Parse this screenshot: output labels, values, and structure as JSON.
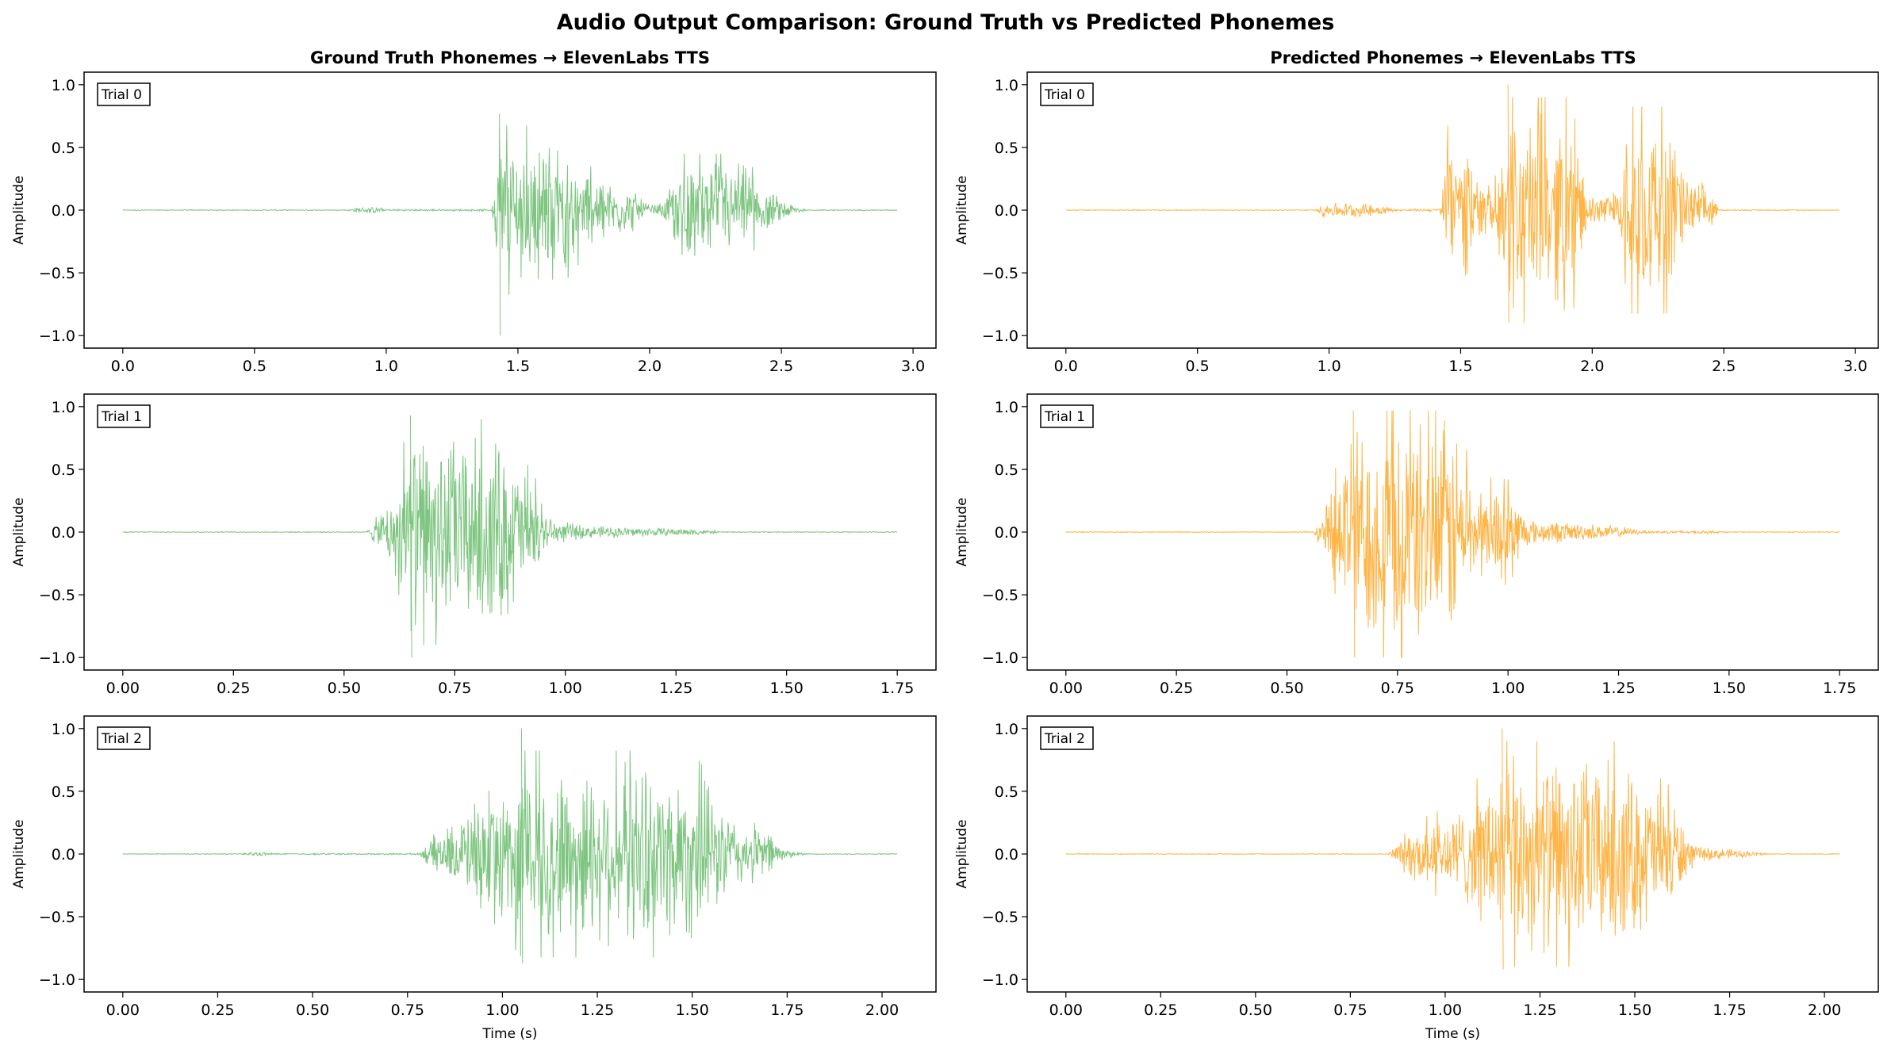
{
  "title": "Audio Output Comparison: Ground Truth vs Predicted Phonemes",
  "colors": {
    "ground_truth_title": "#4caf50",
    "ground_truth_line": "#66bb6a",
    "predicted_title": "#ff9800",
    "predicted_line": "#ffa726"
  },
  "columns": [
    {
      "title": "Ground Truth Phonemes → ElevenLabs TTS"
    },
    {
      "title": "Predicted Phonemes → ElevenLabs TTS"
    }
  ],
  "chart_data": [
    {
      "type": "line",
      "column": 0,
      "trial_label": "Trial 0",
      "ylabel": "Amplitude",
      "xlabel": "",
      "xlim": [
        -0.147,
        3.087
      ],
      "ylim": [
        -1.1,
        1.1
      ],
      "xticks": [
        0,
        0.5,
        1.0,
        1.5,
        2.0,
        2.5,
        3.0
      ],
      "xtick_labels": [
        "0.0",
        "0.5",
        "1.0",
        "1.5",
        "2.0",
        "2.5",
        "3.0"
      ],
      "yticks": [
        -1,
        -0.5,
        0,
        0.5,
        1
      ],
      "ytick_labels": [
        "−1.0",
        "−0.5",
        "0.0",
        "0.5",
        "1.0"
      ],
      "duration": 2.94,
      "max": 0.77,
      "min": -1.0,
      "envelope": [
        [
          0,
          0.003
        ],
        [
          0.85,
          0.003
        ],
        [
          0.9,
          0.02
        ],
        [
          0.96,
          0.02
        ],
        [
          1.0,
          0.006
        ],
        [
          1.4,
          0.006
        ],
        [
          1.43,
          0.45
        ],
        [
          1.6,
          0.45
        ],
        [
          1.7,
          0.35
        ],
        [
          1.75,
          0.25
        ],
        [
          1.95,
          0.12
        ],
        [
          2.0,
          0.03
        ],
        [
          2.05,
          0.05
        ],
        [
          2.12,
          0.3
        ],
        [
          2.35,
          0.3
        ],
        [
          2.45,
          0.12
        ],
        [
          2.55,
          0.03
        ],
        [
          2.6,
          0.004
        ],
        [
          2.94,
          0.003
        ]
      ]
    },
    {
      "type": "line",
      "column": 1,
      "trial_label": "Trial 0",
      "ylabel": "Amplitude",
      "xlabel": "",
      "xlim": [
        -0.147,
        3.087
      ],
      "ylim": [
        -1.1,
        1.1
      ],
      "xticks": [
        0,
        0.5,
        1.0,
        1.5,
        2.0,
        2.5,
        3.0
      ],
      "xtick_labels": [
        "0.0",
        "0.5",
        "1.0",
        "1.5",
        "2.0",
        "2.5",
        "3.0"
      ],
      "yticks": [
        -1,
        -0.5,
        0,
        0.5,
        1
      ],
      "ytick_labels": [
        "−1.0",
        "−0.5",
        "0.0",
        "0.5",
        "1.0"
      ],
      "duration": 2.94,
      "max": 1.0,
      "min": -0.9,
      "envelope": [
        [
          0,
          0.003
        ],
        [
          0.95,
          0.003
        ],
        [
          0.98,
          0.05
        ],
        [
          1.2,
          0.04
        ],
        [
          1.25,
          0.006
        ],
        [
          1.42,
          0.01
        ],
        [
          1.45,
          0.45
        ],
        [
          1.55,
          0.3
        ],
        [
          1.62,
          0.12
        ],
        [
          1.68,
          0.6
        ],
        [
          1.92,
          0.6
        ],
        [
          1.98,
          0.12
        ],
        [
          2.1,
          0.12
        ],
        [
          2.14,
          0.55
        ],
        [
          2.3,
          0.55
        ],
        [
          2.35,
          0.2
        ],
        [
          2.45,
          0.15
        ],
        [
          2.48,
          0.004
        ],
        [
          2.94,
          0.003
        ]
      ]
    },
    {
      "type": "line",
      "column": 0,
      "trial_label": "Trial 1",
      "ylabel": "Amplitude",
      "xlabel": "",
      "xlim": [
        -0.0875,
        1.8375
      ],
      "ylim": [
        -1.1,
        1.1
      ],
      "xticks": [
        0,
        0.25,
        0.5,
        0.75,
        1.0,
        1.25,
        1.5,
        1.75
      ],
      "xtick_labels": [
        "0.00",
        "0.25",
        "0.50",
        "0.75",
        "1.00",
        "1.25",
        "1.50",
        "1.75"
      ],
      "yticks": [
        -1,
        -0.5,
        0,
        0.5,
        1
      ],
      "ytick_labels": [
        "−1.0",
        "−0.5",
        "0.0",
        "0.5",
        "1.0"
      ],
      "duration": 1.75,
      "max": 0.93,
      "min": -1.0,
      "envelope": [
        [
          0,
          0.003
        ],
        [
          0.55,
          0.003
        ],
        [
          0.6,
          0.2
        ],
        [
          0.65,
          0.6
        ],
        [
          0.85,
          0.6
        ],
        [
          0.93,
          0.3
        ],
        [
          0.97,
          0.08
        ],
        [
          1.05,
          0.04
        ],
        [
          1.3,
          0.02
        ],
        [
          1.35,
          0.003
        ],
        [
          1.75,
          0.003
        ]
      ]
    },
    {
      "type": "line",
      "column": 1,
      "trial_label": "Trial 1",
      "ylabel": "Amplitude",
      "xlabel": "",
      "xlim": [
        -0.0875,
        1.8375
      ],
      "ylim": [
        -1.1,
        1.1
      ],
      "xticks": [
        0,
        0.25,
        0.5,
        0.75,
        1.0,
        1.25,
        1.5,
        1.75
      ],
      "xtick_labels": [
        "0.00",
        "0.25",
        "0.50",
        "0.75",
        "1.00",
        "1.25",
        "1.50",
        "1.75"
      ],
      "yticks": [
        -1,
        -0.5,
        0,
        0.5,
        1
      ],
      "ytick_labels": [
        "−1.0",
        "−0.5",
        "0.0",
        "0.5",
        "1.0"
      ],
      "duration": 1.75,
      "max": 0.97,
      "min": -1.0,
      "envelope": [
        [
          0,
          0.003
        ],
        [
          0.56,
          0.003
        ],
        [
          0.6,
          0.25
        ],
        [
          0.65,
          0.7
        ],
        [
          0.88,
          0.7
        ],
        [
          0.92,
          0.3
        ],
        [
          1.0,
          0.28
        ],
        [
          1.05,
          0.08
        ],
        [
          1.25,
          0.04
        ],
        [
          1.3,
          0.01
        ],
        [
          1.45,
          0.01
        ],
        [
          1.5,
          0.003
        ],
        [
          1.75,
          0.003
        ]
      ]
    },
    {
      "type": "line",
      "column": 0,
      "trial_label": "Trial 2",
      "ylabel": "Amplitude",
      "xlabel": "Time (s)",
      "xlim": [
        -0.102,
        2.142
      ],
      "ylim": [
        -1.1,
        1.1
      ],
      "xticks": [
        0,
        0.25,
        0.5,
        0.75,
        1.0,
        1.25,
        1.5,
        1.75,
        2.0
      ],
      "xtick_labels": [
        "0.00",
        "0.25",
        "0.50",
        "0.75",
        "1.00",
        "1.25",
        "1.50",
        "1.75",
        "2.00"
      ],
      "yticks": [
        -1,
        -0.5,
        0,
        0.5,
        1
      ],
      "ytick_labels": [
        "−1.0",
        "−0.5",
        "0.0",
        "0.5",
        "1.0"
      ],
      "duration": 2.04,
      "max": 1.0,
      "min": -0.87,
      "envelope": [
        [
          0,
          0.003
        ],
        [
          0.3,
          0.003
        ],
        [
          0.35,
          0.015
        ],
        [
          0.4,
          0.005
        ],
        [
          0.78,
          0.005
        ],
        [
          0.82,
          0.12
        ],
        [
          0.95,
          0.3
        ],
        [
          1.05,
          0.55
        ],
        [
          1.5,
          0.55
        ],
        [
          1.6,
          0.25
        ],
        [
          1.7,
          0.15
        ],
        [
          1.75,
          0.03
        ],
        [
          1.8,
          0.003
        ],
        [
          2.04,
          0.003
        ]
      ]
    },
    {
      "type": "line",
      "column": 1,
      "trial_label": "Trial 2",
      "ylabel": "Amplitude",
      "xlabel": "Time (s)",
      "xlim": [
        -0.102,
        2.142
      ],
      "ylim": [
        -1.1,
        1.1
      ],
      "xticks": [
        0,
        0.25,
        0.5,
        0.75,
        1.0,
        1.25,
        1.5,
        1.75,
        2.0
      ],
      "xtick_labels": [
        "0.00",
        "0.25",
        "0.50",
        "0.75",
        "1.00",
        "1.25",
        "1.50",
        "1.75",
        "2.00"
      ],
      "yticks": [
        -1,
        -0.5,
        0,
        0.5,
        1
      ],
      "ytick_labels": [
        "−1.0",
        "−0.5",
        "0.0",
        "0.5",
        "1.0"
      ],
      "duration": 2.04,
      "max": 1.0,
      "min": -0.92,
      "envelope": [
        [
          0,
          0.003
        ],
        [
          0.85,
          0.003
        ],
        [
          0.9,
          0.15
        ],
        [
          1.05,
          0.3
        ],
        [
          1.15,
          0.6
        ],
        [
          1.45,
          0.6
        ],
        [
          1.6,
          0.35
        ],
        [
          1.66,
          0.05
        ],
        [
          1.8,
          0.02
        ],
        [
          1.85,
          0.003
        ],
        [
          2.04,
          0.003
        ]
      ]
    }
  ]
}
